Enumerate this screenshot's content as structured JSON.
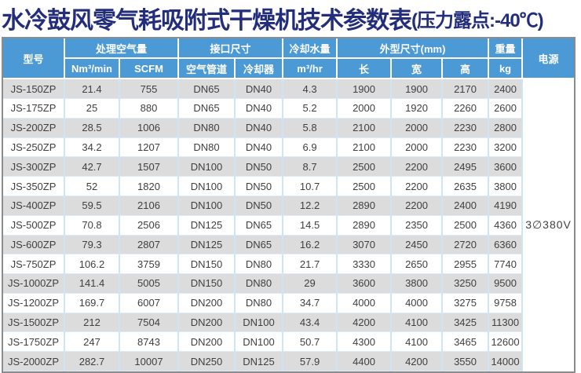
{
  "title": {
    "main": "水冷鼓风零气耗吸附式干燥机技术参数表",
    "suffix": "(压力露点:-40℃)"
  },
  "table": {
    "header": {
      "model": "型号",
      "air_group": "处理空气量",
      "air_unit_nm3": "Nm³/min",
      "air_unit_scfm": "SCFM",
      "port_group": "接口尺寸",
      "port_air_pipe": "空气管道",
      "port_cooler": "冷却器",
      "water_group": "冷却水量",
      "water_unit": "m³/hr",
      "dims_group": "外型尺寸(mm)",
      "dim_length": "长",
      "dim_width": "宽",
      "dim_height": "高",
      "weight_group": "重量",
      "weight_unit": "kg",
      "power": "电源"
    },
    "power_value": "3∅380V",
    "rows": [
      [
        "JS-150ZP",
        "21.4",
        "755",
        "DN65",
        "DN40",
        "4.3",
        "1900",
        "1900",
        "2170",
        "2400"
      ],
      [
        "JS-175ZP",
        "25",
        "880",
        "DN65",
        "DN40",
        "5.2",
        "2000",
        "1920",
        "2260",
        "2600"
      ],
      [
        "JS-200ZP",
        "28.5",
        "1006",
        "DN80",
        "DN40",
        "5.8",
        "2100",
        "2000",
        "2230",
        "2800"
      ],
      [
        "JS-250ZP",
        "34.2",
        "1207",
        "DN80",
        "DN40",
        "6.9",
        "2100",
        "2000",
        "2230",
        "3200"
      ],
      [
        "JS-300ZP",
        "42.7",
        "1507",
        "DN100",
        "DN50",
        "8.7",
        "2500",
        "2200",
        "2495",
        "3600"
      ],
      [
        "JS-350ZP",
        "52",
        "1820",
        "DN100",
        "DN50",
        "10.7",
        "2500",
        "2200",
        "2635",
        "3800"
      ],
      [
        "JS-400ZP",
        "59.5",
        "2106",
        "DN100",
        "DN50",
        "12.2",
        "2890",
        "2200",
        "2400",
        "4190"
      ],
      [
        "JS-500ZP",
        "70.8",
        "2506",
        "DN125",
        "DN65",
        "14.5",
        "2890",
        "2350",
        "2500",
        "4360"
      ],
      [
        "JS-600ZP",
        "79.3",
        "2807",
        "DN125",
        "DN65",
        "16.2",
        "3070",
        "2450",
        "2720",
        "6360"
      ],
      [
        "JS-750ZP",
        "106.2",
        "3759",
        "DN150",
        "DN80",
        "21.7",
        "3330",
        "2650",
        "2955",
        "7740"
      ],
      [
        "JS-1000ZP",
        "141.4",
        "5005",
        "DN150",
        "DN80",
        "29",
        "3600",
        "3800",
        "3250",
        "9500"
      ],
      [
        "JS-1200ZP",
        "169.7",
        "6007",
        "DN200",
        "DN80",
        "34.7",
        "4000",
        "4000",
        "3275",
        "9758"
      ],
      [
        "JS-1500ZP",
        "212",
        "7504",
        "DN200",
        "DN100",
        "43.4",
        "4200",
        "4100",
        "3425",
        "11300"
      ],
      [
        "JS-1750ZP",
        "247",
        "8743",
        "DN200",
        "DN100",
        "50.7",
        "4300",
        "4100",
        "3465",
        "12600"
      ],
      [
        "JS-2000ZP",
        "282.7",
        "10007",
        "DN250",
        "DN125",
        "57.9",
        "4400",
        "4200",
        "3550",
        "14000"
      ]
    ],
    "colors": {
      "title": "#222d7c",
      "header_bg": "#4c9ad5",
      "header_text": "#ffffff",
      "row_alt_bg": "#dcdcdc",
      "row_bg": "#ffffff",
      "body_text": "#3f3f3f",
      "outer_border": "#8c8c8c",
      "separator": "#cde5f6"
    }
  }
}
